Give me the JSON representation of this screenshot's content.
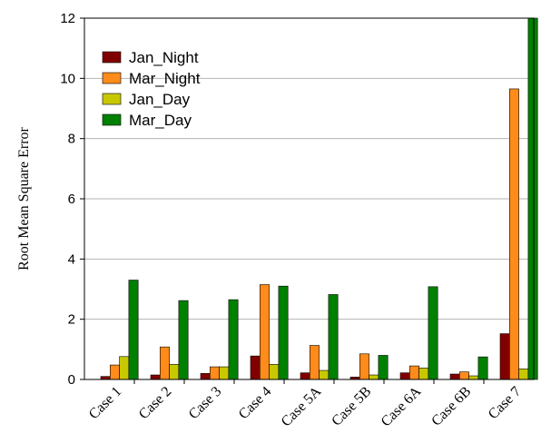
{
  "chart_data": {
    "type": "bar",
    "title": "",
    "xlabel": "",
    "ylabel": "Root Mean Square Error",
    "ylim": [
      0,
      12
    ],
    "yticks": [
      0,
      2,
      4,
      6,
      8,
      10,
      12
    ],
    "grid": true,
    "legend_position": "top-left",
    "categories": [
      "Case 1",
      "Case 2",
      "Case 3",
      "Case 4",
      "Case 5A",
      "Case 5B",
      "Case 6A",
      "Case 6B",
      "Case 7"
    ],
    "series": [
      {
        "name": "Jan_Night",
        "color": "#800000",
        "values": [
          0.1,
          0.15,
          0.2,
          0.78,
          0.22,
          0.08,
          0.22,
          0.18,
          1.52
        ]
      },
      {
        "name": "Mar_Night",
        "color": "#ff8c1a",
        "values": [
          0.48,
          1.08,
          0.42,
          3.15,
          1.13,
          0.85,
          0.45,
          0.25,
          9.65
        ]
      },
      {
        "name": "Jan_Day",
        "color": "#c8c800",
        "values": [
          0.76,
          0.5,
          0.42,
          0.5,
          0.3,
          0.15,
          0.38,
          0.12,
          0.35
        ]
      },
      {
        "name": "Mar_Day",
        "color": "#008000",
        "values": [
          3.3,
          2.62,
          2.65,
          3.1,
          2.82,
          0.8,
          3.08,
          0.75,
          12.0
        ]
      }
    ]
  }
}
